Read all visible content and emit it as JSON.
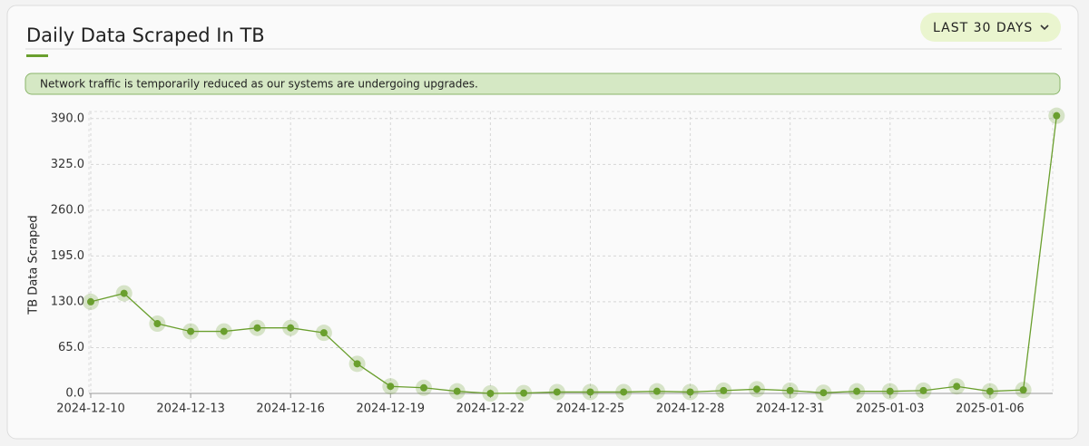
{
  "chart_data": {
    "type": "line",
    "title": "Daily Data Scraped In TB",
    "ylabel": "TB Data Scraped",
    "x": [
      "2024-12-10",
      "2024-12-11",
      "2024-12-12",
      "2024-12-13",
      "2024-12-14",
      "2024-12-15",
      "2024-12-16",
      "2024-12-17",
      "2024-12-18",
      "2024-12-19",
      "2024-12-20",
      "2024-12-21",
      "2024-12-22",
      "2024-12-23",
      "2024-12-24",
      "2024-12-25",
      "2024-12-26",
      "2024-12-27",
      "2024-12-28",
      "2024-12-29",
      "2024-12-30",
      "2024-12-31",
      "2025-01-01",
      "2025-01-02",
      "2025-01-03",
      "2025-01-04",
      "2025-01-05",
      "2025-01-06",
      "2025-01-07",
      "2025-01-08"
    ],
    "series": [
      {
        "name": "TB Data Scraped",
        "color": "#6a9f2e",
        "values": [
          130,
          142,
          99,
          88,
          88,
          93,
          93,
          86,
          42,
          10,
          8,
          3,
          0,
          0.5,
          2,
          2,
          2,
          3,
          2,
          4,
          6,
          4,
          1,
          3,
          3,
          4,
          10,
          3,
          5,
          394
        ]
      }
    ],
    "xticks": [
      "2024-12-10",
      "2024-12-13",
      "2024-12-16",
      "2024-12-19",
      "2024-12-22",
      "2024-12-25",
      "2024-12-28",
      "2024-12-31",
      "2025-01-03",
      "2025-01-06"
    ],
    "ylim": [
      0,
      400
    ],
    "yticks": [
      {
        "value": 0,
        "label": "0.0"
      },
      {
        "value": 65,
        "label": "65.0"
      },
      {
        "value": 130,
        "label": "130.0"
      },
      {
        "value": 195,
        "label": "195.0"
      },
      {
        "value": 260,
        "label": "260.0"
      },
      {
        "value": 325,
        "label": "325.0"
      },
      {
        "value": 390,
        "label": "390.0"
      }
    ],
    "grid": true
  },
  "controls": {
    "range_button": "LAST 30 DAYS",
    "notice": "Network traffic is temporarily reduced as our systems are undergoing upgrades."
  }
}
